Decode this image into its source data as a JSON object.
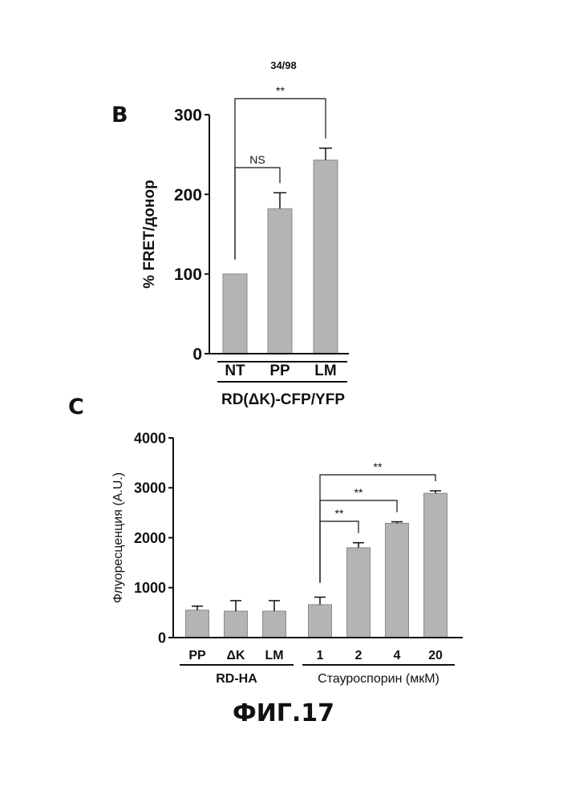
{
  "page_number": "34/98",
  "figure_caption": "ФИГ.17",
  "panels": {
    "b": {
      "letter": "B"
    },
    "c": {
      "letter": "C"
    }
  },
  "colors": {
    "bar": "#b4b4b4",
    "ink": "#111111"
  },
  "chart_data": [
    {
      "type": "bar",
      "panel": "B",
      "categories": [
        "NT",
        "PP",
        "LM"
      ],
      "values": [
        100,
        182,
        243
      ],
      "errors": [
        0,
        20,
        15
      ],
      "ylabel": "% FRET/донор",
      "xlabel": "RD(ΔK)-CFP/YFP",
      "ylim": [
        0,
        300
      ],
      "yticks": [
        "0",
        "100",
        "200",
        "300"
      ],
      "significance": [
        {
          "from": 0,
          "to": 1,
          "label": "NS"
        },
        {
          "from": 0,
          "to": 2,
          "label": "**"
        }
      ]
    },
    {
      "type": "bar",
      "panel": "C",
      "categories": [
        "PP",
        "ΔK",
        "LM",
        "1",
        "2",
        "4",
        "20"
      ],
      "values": [
        550,
        530,
        530,
        660,
        1800,
        2290,
        2890
      ],
      "errors": [
        80,
        210,
        210,
        150,
        100,
        30,
        50
      ],
      "ylabel": "Флуоресценция (A.U.)",
      "ylim": [
        0,
        4000
      ],
      "yticks": [
        "0",
        "1000",
        "2000",
        "3000",
        "4000"
      ],
      "groups": [
        {
          "label": "RD-HA",
          "from": 0,
          "to": 2
        },
        {
          "label": "Стауроспорин (мкМ)",
          "from": 3,
          "to": 6
        }
      ],
      "significance": [
        {
          "from": 3,
          "to": 4,
          "label": "**"
        },
        {
          "from": 3,
          "to": 5,
          "label": "**"
        },
        {
          "from": 3,
          "to": 6,
          "label": "**"
        }
      ]
    }
  ]
}
